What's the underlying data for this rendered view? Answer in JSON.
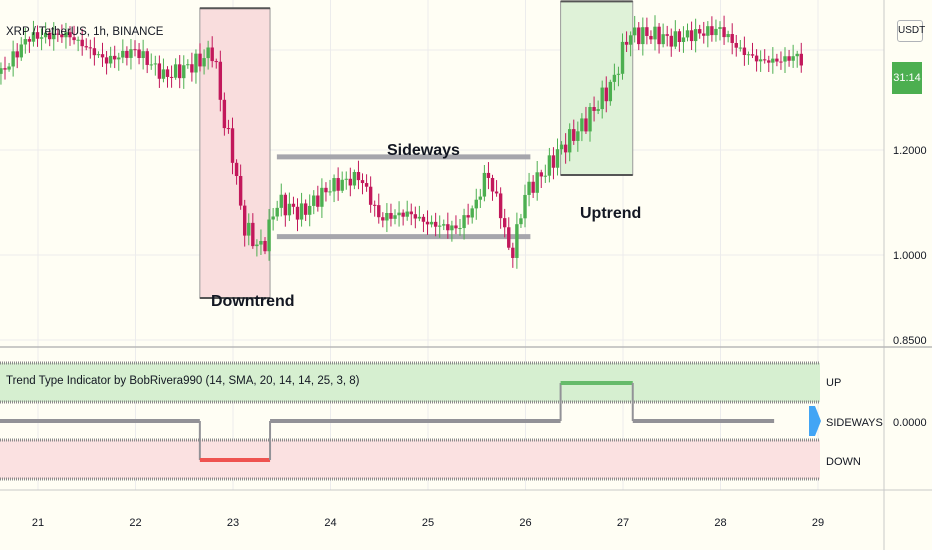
{
  "header": {
    "symbol": "XRP / TetherUS, 1h, BINANCE",
    "currency": "USDT"
  },
  "price_tag": "31:14",
  "annotations": {
    "downtrend": "Downtrend",
    "sideways": "Sideways",
    "uptrend": "Uptrend"
  },
  "indicator": {
    "title": "Trend Type Indicator by BobRivera990 (14, SMA, 20, 14, 14, 25, 3, 8)",
    "zones": [
      "UP",
      "SIDEWAYS",
      "DOWN"
    ],
    "current_value": "0.0000"
  },
  "colors": {
    "bull": "#4caf50",
    "bear": "#c2185b",
    "down_zone": "#f8d7d7",
    "up_zone": "#d6efd0",
    "sideways_line": "#9a9a9f",
    "price_tag": "#4caf50"
  },
  "chart_data": [
    {
      "type": "candlestick",
      "x_ticks": [
        "21",
        "22",
        "23",
        "24",
        "25",
        "26",
        "27",
        "28",
        "29"
      ],
      "y_ticks": [
        "1.2000",
        "1.0000",
        "0.8500"
      ],
      "annotation_boxes": [
        {
          "label": "Downtrend",
          "x": [
            22.66,
            23.38
          ],
          "y": [
            0.918,
            1.47
          ]
        },
        {
          "label": "Uptrend",
          "x": [
            26.36,
            27.1
          ],
          "y": [
            1.1525,
            1.483
          ]
        }
      ],
      "sideways_range": {
        "label": "Sideways",
        "x": [
          23.45,
          26.05
        ],
        "y": [
          1.035,
          1.187
        ]
      }
    },
    {
      "type": "line",
      "title": "Trend Type Indicator by BobRivera990 (14, SMA, 20, 14, 14, 25, 3, 8)",
      "y_categories": [
        "DOWN",
        "SIDEWAYS",
        "UP"
      ],
      "segments": [
        {
          "x": [
            20.6,
            22.66
          ],
          "state": "SIDEWAYS"
        },
        {
          "x": [
            22.66,
            23.38
          ],
          "state": "DOWN"
        },
        {
          "x": [
            23.38,
            26.36
          ],
          "state": "SIDEWAYS"
        },
        {
          "x": [
            26.36,
            27.1
          ],
          "state": "UP"
        },
        {
          "x": [
            27.1,
            28.55
          ],
          "state": "SIDEWAYS"
        }
      ]
    }
  ]
}
